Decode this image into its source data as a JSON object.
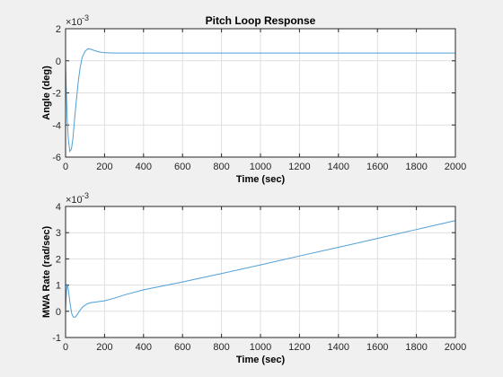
{
  "chart_data": [
    {
      "type": "line",
      "title": "Pitch Loop Response",
      "xlabel": "Time (sec)",
      "ylabel": "Angle (deg)",
      "xlim": [
        0,
        2000
      ],
      "ylim": [
        -6,
        2
      ],
      "y_multiplier": "×10",
      "y_exponent": "-3",
      "xticks": [
        "0",
        "200",
        "400",
        "600",
        "800",
        "1000",
        "1200",
        "1400",
        "1600",
        "1800",
        "2000"
      ],
      "yticks": [
        "-6",
        "-4",
        "-2",
        "0",
        "2"
      ],
      "grid": true,
      "legend": "none",
      "series": [
        {
          "color": "#4e9fd6",
          "x": [
            0,
            3,
            8,
            15,
            22,
            30,
            38,
            45,
            55,
            65,
            75,
            85,
            100,
            115,
            130,
            150,
            170,
            200,
            250,
            300,
            400,
            600,
            1000,
            1500,
            2000
          ],
          "y": [
            0,
            -1.5,
            -3.6,
            -5.0,
            -5.65,
            -5.5,
            -4.8,
            -3.8,
            -2.5,
            -1.3,
            -0.4,
            0.2,
            0.6,
            0.75,
            0.72,
            0.63,
            0.56,
            0.5,
            0.48,
            0.48,
            0.48,
            0.48,
            0.48,
            0.48,
            0.48
          ]
        }
      ]
    },
    {
      "type": "line",
      "title": "",
      "xlabel": "Time (sec)",
      "ylabel": "MWA Rate (rad/sec)",
      "xlim": [
        0,
        2000
      ],
      "ylim": [
        -1,
        4
      ],
      "y_multiplier": "×10",
      "y_exponent": "-3",
      "xticks": [
        "0",
        "200",
        "400",
        "600",
        "800",
        "1000",
        "1200",
        "1400",
        "1600",
        "1800",
        "2000"
      ],
      "yticks": [
        "-1",
        "0",
        "1",
        "2",
        "3",
        "4"
      ],
      "grid": true,
      "legend": "none",
      "series": [
        {
          "color": "#4e9fd6",
          "x": [
            0,
            2,
            5,
            8,
            12,
            18,
            25,
            32,
            40,
            50,
            60,
            75,
            90,
            110,
            130,
            150,
            170,
            200,
            250,
            300,
            400,
            600,
            800,
            1000,
            1200,
            1400,
            1600,
            1800,
            2000
          ],
          "y": [
            0,
            0.4,
            0.8,
            1.0,
            0.95,
            0.6,
            0.2,
            -0.1,
            -0.22,
            -0.22,
            -0.12,
            0.05,
            0.18,
            0.28,
            0.33,
            0.35,
            0.37,
            0.4,
            0.5,
            0.62,
            0.82,
            1.12,
            1.44,
            1.77,
            2.11,
            2.44,
            2.78,
            3.12,
            3.46
          ]
        }
      ]
    }
  ]
}
